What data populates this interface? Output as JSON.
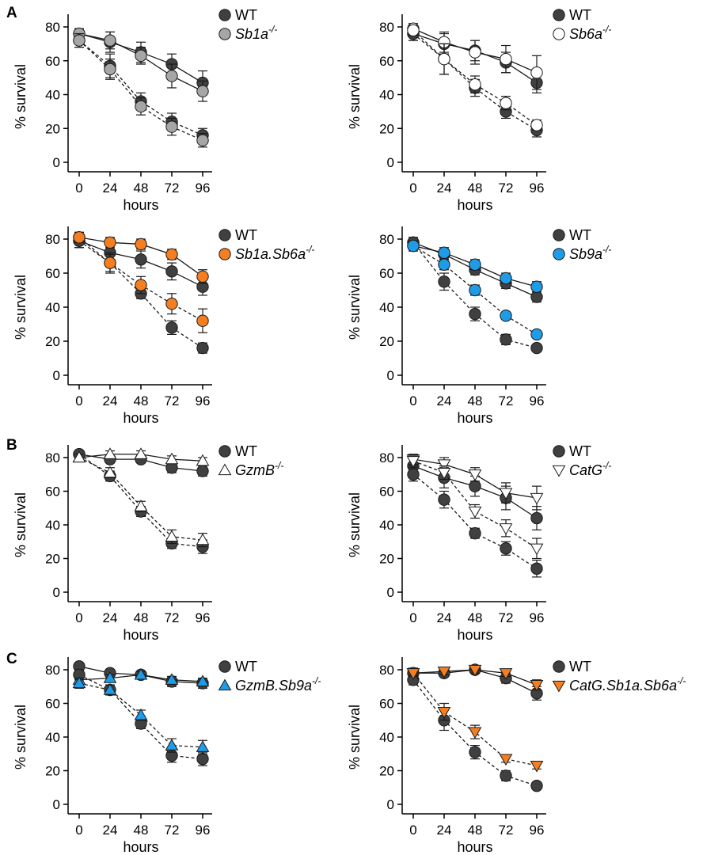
{
  "colors": {
    "wt": "#404040",
    "open": "#ffffff",
    "grey": "#a6a6a6",
    "orange": "#f57f20",
    "blue": "#1f9ce8",
    "axis": "#000000"
  },
  "panel_labels": [
    "A",
    "B",
    "C"
  ],
  "chart_data": [
    {
      "id": "a1",
      "type": "line",
      "panel_label": "A",
      "xlabel": "hours",
      "ylabel": "% survival",
      "x": [
        0,
        24,
        48,
        72,
        96
      ],
      "ylim": [
        0,
        80
      ],
      "yticks": [
        0,
        20,
        40,
        60,
        80
      ],
      "grid": false,
      "legend_position": "top-right",
      "legend": [
        {
          "text": "WT",
          "marker": "circle",
          "color": "#404040"
        },
        {
          "text": "Sb1a",
          "suffix": "-/-",
          "italic": true,
          "marker": "circle",
          "color": "#a6a6a6"
        }
      ],
      "series": [
        {
          "group": "WT",
          "line": "solid",
          "marker": "circle",
          "color": "#404040",
          "values": [
            76,
            71,
            65,
            58,
            47
          ],
          "err": [
            3,
            6,
            6,
            6,
            7
          ]
        },
        {
          "group": "Sb1a-/-",
          "line": "solid",
          "marker": "circle",
          "color": "#a6a6a6",
          "values": [
            76,
            72,
            63,
            51,
            42
          ],
          "err": [
            3,
            5,
            5,
            7,
            6
          ]
        },
        {
          "group": "WT",
          "line": "dashed",
          "marker": "circle",
          "color": "#404040",
          "values": [
            72,
            57,
            36,
            24,
            16
          ],
          "err": [
            4,
            7,
            5,
            5,
            4
          ]
        },
        {
          "group": "Sb1a-/-",
          "line": "dashed",
          "marker": "circle",
          "color": "#a6a6a6",
          "values": [
            72,
            55,
            33,
            21,
            13
          ],
          "err": [
            4,
            6,
            5,
            5,
            4
          ]
        }
      ]
    },
    {
      "id": "a2",
      "type": "line",
      "xlabel": "hours",
      "ylabel": "% survival",
      "x": [
        0,
        24,
        48,
        72,
        96
      ],
      "ylim": [
        0,
        80
      ],
      "yticks": [
        0,
        20,
        40,
        60,
        80
      ],
      "grid": false,
      "legend_position": "top-right",
      "legend": [
        {
          "text": "WT",
          "marker": "circle",
          "color": "#404040"
        },
        {
          "text": "Sb6a",
          "suffix": "-/-",
          "italic": true,
          "marker": "circle",
          "color": "#ffffff"
        }
      ],
      "series": [
        {
          "group": "WT",
          "line": "solid",
          "marker": "circle",
          "color": "#404040",
          "values": [
            76,
            70,
            66,
            59,
            47
          ],
          "err": [
            4,
            6,
            6,
            6,
            6
          ]
        },
        {
          "group": "Sb6a-/-",
          "line": "solid",
          "marker": "circle",
          "color": "#ffffff",
          "values": [
            79,
            71,
            65,
            61,
            53
          ],
          "err": [
            3,
            6,
            7,
            8,
            10
          ]
        },
        {
          "group": "WT",
          "line": "dashed",
          "marker": "circle",
          "color": "#404040",
          "values": [
            76,
            61,
            44,
            30,
            19
          ],
          "err": [
            4,
            9,
            5,
            4,
            4
          ]
        },
        {
          "group": "Sb6a-/-",
          "line": "dashed",
          "marker": "circle",
          "color": "#ffffff",
          "values": [
            78,
            61,
            46,
            35,
            22
          ],
          "err": [
            3,
            9,
            5,
            4,
            3
          ]
        }
      ]
    },
    {
      "id": "a3",
      "type": "line",
      "xlabel": "hours",
      "ylabel": "% survival",
      "x": [
        0,
        24,
        48,
        72,
        96
      ],
      "ylim": [
        0,
        80
      ],
      "yticks": [
        0,
        20,
        40,
        60,
        80
      ],
      "grid": false,
      "legend_position": "top-right",
      "legend": [
        {
          "text": "WT",
          "marker": "circle",
          "color": "#404040"
        },
        {
          "text": "Sb1a.Sb6a",
          "suffix": "-/-",
          "italic": true,
          "marker": "circle",
          "color": "#f57f20"
        }
      ],
      "series": [
        {
          "group": "WT",
          "line": "solid",
          "marker": "circle",
          "color": "#404040",
          "values": [
            79,
            72,
            68,
            61,
            52
          ],
          "err": [
            4,
            4,
            5,
            5,
            5
          ]
        },
        {
          "group": "Sb1a.Sb6a-/-",
          "line": "solid",
          "marker": "circle",
          "color": "#f57f20",
          "values": [
            81,
            78,
            77,
            71,
            58
          ],
          "err": [
            3,
            3,
            3,
            3,
            4
          ]
        },
        {
          "group": "WT",
          "line": "dashed",
          "marker": "circle",
          "color": "#404040",
          "values": [
            79,
            66,
            48,
            28,
            16
          ],
          "err": [
            4,
            5,
            3,
            4,
            3
          ]
        },
        {
          "group": "Sb1a.Sb6a-/-",
          "line": "dashed",
          "marker": "circle",
          "color": "#f57f20",
          "values": [
            81,
            66,
            53,
            42,
            32
          ],
          "err": [
            3,
            6,
            5,
            6,
            7
          ]
        }
      ]
    },
    {
      "id": "a4",
      "type": "line",
      "xlabel": "hours",
      "ylabel": "% survival",
      "x": [
        0,
        24,
        48,
        72,
        96
      ],
      "ylim": [
        0,
        80
      ],
      "yticks": [
        0,
        20,
        40,
        60,
        80
      ],
      "grid": false,
      "legend_position": "top-right",
      "legend": [
        {
          "text": "WT",
          "marker": "circle",
          "color": "#404040"
        },
        {
          "text": "Sb9a",
          "suffix": "-/-",
          "italic": true,
          "marker": "circle",
          "color": "#1f9ce8"
        }
      ],
      "series": [
        {
          "group": "WT",
          "line": "solid",
          "marker": "circle",
          "color": "#404040",
          "values": [
            78,
            71,
            62,
            54,
            46
          ],
          "err": [
            3,
            3,
            3,
            3,
            3
          ]
        },
        {
          "group": "Sb9a-/-",
          "line": "solid",
          "marker": "circle",
          "color": "#1f9ce8",
          "values": [
            76,
            72,
            65,
            57,
            52
          ],
          "err": [
            3,
            3,
            3,
            3,
            3
          ]
        },
        {
          "group": "WT",
          "line": "dashed",
          "marker": "circle",
          "color": "#404040",
          "values": [
            78,
            55,
            36,
            21,
            16
          ],
          "err": [
            3,
            5,
            4,
            3,
            2
          ]
        },
        {
          "group": "Sb9a-/-",
          "line": "dashed",
          "marker": "circle",
          "color": "#1f9ce8",
          "values": [
            76,
            65,
            50,
            35,
            24
          ],
          "err": [
            3,
            3,
            3,
            2,
            2
          ]
        }
      ]
    },
    {
      "id": "b1",
      "type": "line",
      "panel_label": "B",
      "xlabel": "hours",
      "ylabel": "% survival",
      "x": [
        0,
        24,
        48,
        72,
        96
      ],
      "ylim": [
        0,
        80
      ],
      "yticks": [
        0,
        20,
        40,
        60,
        80
      ],
      "grid": false,
      "legend_position": "top-right",
      "legend": [
        {
          "text": "WT",
          "marker": "circle",
          "color": "#404040"
        },
        {
          "text": "GzmB",
          "suffix": "-/-",
          "italic": true,
          "marker": "triangle-up",
          "color": "#ffffff"
        }
      ],
      "series": [
        {
          "group": "WT",
          "line": "solid",
          "marker": "circle",
          "color": "#404040",
          "values": [
            82,
            79,
            79,
            74,
            72
          ],
          "err": [
            2,
            2,
            2,
            3,
            3
          ]
        },
        {
          "group": "GzmB-/-",
          "line": "solid",
          "marker": "triangle-up",
          "color": "#ffffff",
          "values": [
            80,
            82,
            82,
            79,
            78
          ],
          "err": [
            2,
            2,
            2,
            2,
            2
          ]
        },
        {
          "group": "WT",
          "line": "dashed",
          "marker": "circle",
          "color": "#404040",
          "values": [
            82,
            69,
            48,
            29,
            27
          ],
          "err": [
            2,
            3,
            3,
            3,
            4
          ]
        },
        {
          "group": "GzmB-/-",
          "line": "dashed",
          "marker": "triangle-up",
          "color": "#ffffff",
          "values": [
            80,
            71,
            51,
            33,
            31
          ],
          "err": [
            2,
            3,
            3,
            4,
            4
          ]
        }
      ]
    },
    {
      "id": "b2",
      "type": "line",
      "xlabel": "hours",
      "ylabel": "% survival",
      "x": [
        0,
        24,
        48,
        72,
        96
      ],
      "ylim": [
        0,
        80
      ],
      "yticks": [
        0,
        20,
        40,
        60,
        80
      ],
      "grid": false,
      "legend_position": "top-right",
      "legend": [
        {
          "text": "WT",
          "marker": "circle",
          "color": "#404040"
        },
        {
          "text": "CatG",
          "suffix": "-/-",
          "italic": true,
          "marker": "triangle-down",
          "color": "#ffffff"
        }
      ],
      "series": [
        {
          "group": "WT",
          "line": "solid",
          "marker": "circle",
          "color": "#404040",
          "values": [
            75,
            68,
            63,
            56,
            44
          ],
          "err": [
            4,
            6,
            6,
            7,
            7
          ]
        },
        {
          "group": "CatG-/-",
          "line": "solid",
          "marker": "triangle-down",
          "color": "#ffffff",
          "values": [
            79,
            76,
            70,
            59,
            56
          ],
          "err": [
            3,
            4,
            4,
            6,
            7
          ]
        },
        {
          "group": "WT",
          "line": "dashed",
          "marker": "circle",
          "color": "#404040",
          "values": [
            70,
            55,
            35,
            26,
            14
          ],
          "err": [
            4,
            5,
            3,
            4,
            5
          ]
        },
        {
          "group": "CatG-/-",
          "line": "dashed",
          "marker": "triangle-down",
          "color": "#ffffff",
          "values": [
            78,
            71,
            48,
            38,
            26
          ],
          "err": [
            3,
            4,
            4,
            5,
            6
          ]
        }
      ]
    },
    {
      "id": "c1",
      "type": "line",
      "panel_label": "C",
      "xlabel": "hours",
      "ylabel": "% survival",
      "x": [
        0,
        24,
        48,
        72,
        96
      ],
      "ylim": [
        0,
        80
      ],
      "yticks": [
        0,
        20,
        40,
        60,
        80
      ],
      "grid": false,
      "legend_position": "top-right",
      "legend": [
        {
          "text": "WT",
          "marker": "circle",
          "color": "#404040"
        },
        {
          "text": "GzmB.Sb9a",
          "suffix": "-/-",
          "italic": true,
          "marker": "triangle-up",
          "color": "#1f9ce8"
        }
      ],
      "series": [
        {
          "group": "WT",
          "line": "solid",
          "marker": "circle",
          "color": "#404040",
          "values": [
            82,
            78,
            77,
            73,
            72
          ],
          "err": [
            2,
            2,
            2,
            3,
            3
          ]
        },
        {
          "group": "GzmB.Sb9a-/-",
          "line": "solid",
          "marker": "triangle-up",
          "color": "#1f9ce8",
          "values": [
            74,
            75,
            77,
            74,
            73
          ],
          "err": [
            2,
            2,
            2,
            2,
            2
          ]
        },
        {
          "group": "WT",
          "line": "dashed",
          "marker": "circle",
          "color": "#404040",
          "values": [
            77,
            68,
            48,
            29,
            27
          ],
          "err": [
            3,
            3,
            3,
            4,
            4
          ]
        },
        {
          "group": "GzmB.Sb9a-/-",
          "line": "dashed",
          "marker": "triangle-up",
          "color": "#1f9ce8",
          "values": [
            72,
            68,
            53,
            35,
            34
          ],
          "err": [
            3,
            3,
            3,
            4,
            4
          ]
        }
      ]
    },
    {
      "id": "c2",
      "type": "line",
      "xlabel": "hours",
      "ylabel": "% survival",
      "x": [
        0,
        24,
        48,
        72,
        96
      ],
      "ylim": [
        0,
        80
      ],
      "yticks": [
        0,
        20,
        40,
        60,
        80
      ],
      "grid": false,
      "legend_position": "top-right",
      "legend": [
        {
          "text": "WT",
          "marker": "circle",
          "color": "#404040"
        },
        {
          "text": "CatG.Sb1a.Sb6a",
          "suffix": "-/-",
          "italic": true,
          "marker": "triangle-down",
          "color": "#f57f20"
        }
      ],
      "series": [
        {
          "group": "WT",
          "line": "solid",
          "marker": "circle",
          "color": "#404040",
          "values": [
            78,
            78,
            80,
            75,
            66
          ],
          "err": [
            3,
            2,
            2,
            3,
            4
          ]
        },
        {
          "group": "CatG.Sb1a.Sb6a-/-",
          "line": "solid",
          "marker": "triangle-down",
          "color": "#f57f20",
          "values": [
            78,
            79,
            80,
            78,
            71
          ],
          "err": [
            2,
            2,
            2,
            2,
            3
          ]
        },
        {
          "group": "WT",
          "line": "dashed",
          "marker": "circle",
          "color": "#404040",
          "values": [
            74,
            50,
            31,
            17,
            11
          ],
          "err": [
            3,
            6,
            4,
            3,
            2
          ]
        },
        {
          "group": "CatG.Sb1a.Sb6a-/-",
          "line": "dashed",
          "marker": "triangle-down",
          "color": "#f57f20",
          "values": [
            78,
            55,
            43,
            27,
            23
          ],
          "err": [
            2,
            5,
            4,
            2,
            2
          ]
        }
      ]
    }
  ]
}
